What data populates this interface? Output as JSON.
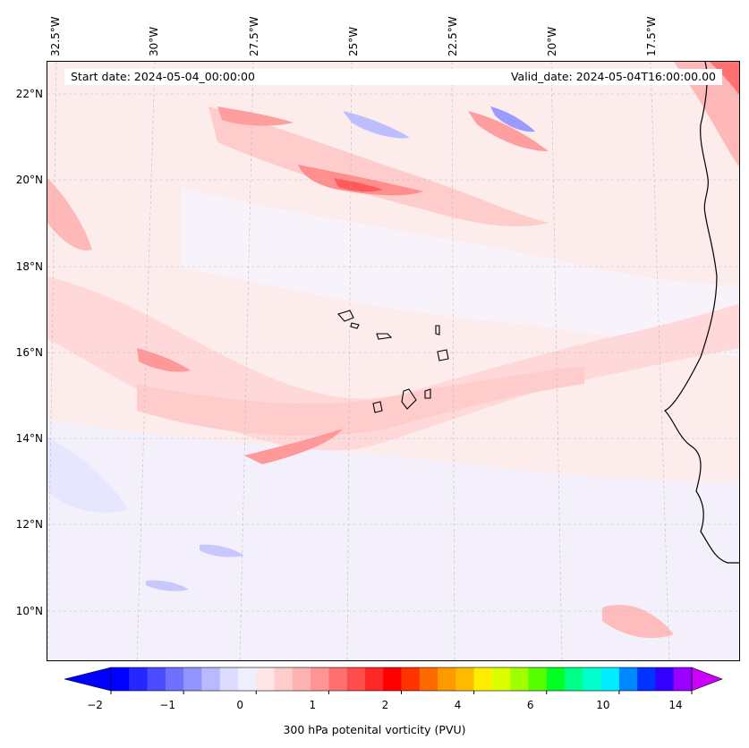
{
  "header": {
    "start_date": "Start date: 2024-05-04_00:00:00",
    "valid_date": "Valid_date: 2024-05-04T16:00:00.00"
  },
  "map": {
    "lon_labels": [
      "32.5°W",
      "30°W",
      "27.5°W",
      "25°W",
      "22.5°W",
      "20°W",
      "17.5°W"
    ],
    "lat_labels": [
      "22°N",
      "20°N",
      "18°N",
      "16°N",
      "14°N",
      "12°N",
      "10°N"
    ]
  },
  "colorbar": {
    "label": "300 hPa potenital vorticity (PVU)",
    "tick_labels": [
      "−2",
      "−1",
      "0",
      "1",
      "2",
      "4",
      "6",
      "10",
      "14"
    ],
    "colors": [
      "#0000ff",
      "#2626ff",
      "#4b4bff",
      "#7070ff",
      "#9494ff",
      "#b9b9ff",
      "#dcdcff",
      "#eeeeff",
      "#ffe6e6",
      "#ffcccc",
      "#ffb2b2",
      "#ff9494",
      "#ff7070",
      "#ff4c4c",
      "#ff2828",
      "#ff0000",
      "#ff3300",
      "#ff6a00",
      "#ff9900",
      "#ffbb00",
      "#ffee00",
      "#d9ff00",
      "#a0ff00",
      "#55ff00",
      "#00ff22",
      "#00ff88",
      "#00ffcc",
      "#00eeff",
      "#0088ff",
      "#0033ff",
      "#3300ff",
      "#9900ff"
    ],
    "extend_min_color": "#0000ff",
    "extend_max_color": "#cc00ff"
  }
}
